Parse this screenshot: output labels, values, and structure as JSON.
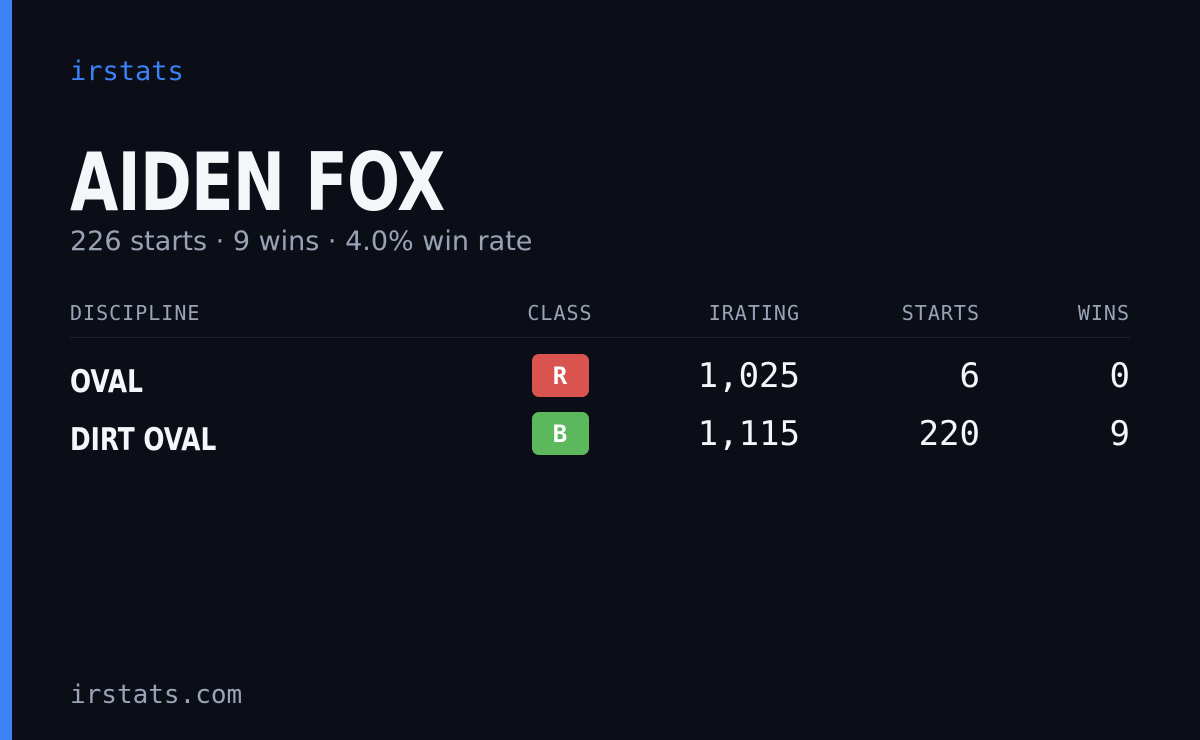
{
  "brand": "irstats",
  "driver": {
    "name": "AIDEN FOX",
    "summary": "226 starts · 9 wins · 4.0% win rate"
  },
  "table": {
    "headers": [
      "DISCIPLINE",
      "CLASS",
      "IRATING",
      "STARTS",
      "WINS"
    ],
    "rows": [
      [
        "OVAL",
        "R",
        "1,025",
        "6",
        "0"
      ],
      [
        "DIRT OVAL",
        "B",
        "1,115",
        "220",
        "9"
      ]
    ],
    "class_colors": [
      "#d9534f",
      "#5cb85c"
    ]
  },
  "footer": "irstats.com"
}
